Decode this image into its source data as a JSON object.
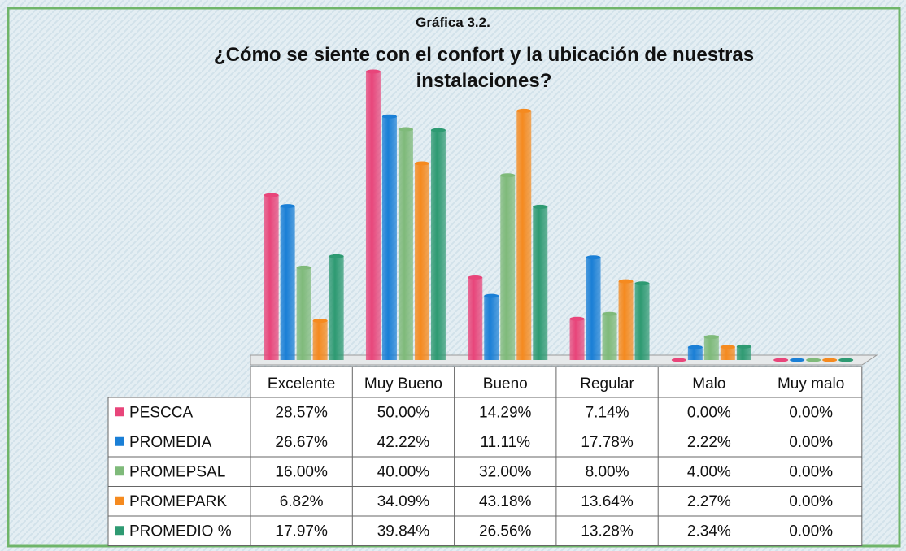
{
  "chart_data": {
    "type": "bar",
    "title": "Gráfica 3.2.",
    "subtitle": "¿Cómo se siente con el confort y la ubicación de nuestras instalaciones?",
    "categories": [
      "Excelente",
      "Muy Bueno",
      "Bueno",
      "Regular",
      "Malo",
      "Muy malo"
    ],
    "series": [
      {
        "name": "PESCCA",
        "color": "#e8457a",
        "values": [
          28.57,
          50.0,
          14.29,
          7.14,
          0.0,
          0.0
        ],
        "value_labels": [
          "28.57%",
          "50.00%",
          "14.29%",
          "7.14%",
          "0.00%",
          "0.00%"
        ]
      },
      {
        "name": "PROMEDIA",
        "color": "#1a7fd6",
        "values": [
          26.67,
          42.22,
          11.11,
          17.78,
          2.22,
          0.0
        ],
        "value_labels": [
          "26.67%",
          "42.22%",
          "11.11%",
          "17.78%",
          "2.22%",
          "0.00%"
        ]
      },
      {
        "name": "PROMEPSAL",
        "color": "#7fba7a",
        "values": [
          16.0,
          40.0,
          32.0,
          8.0,
          4.0,
          0.0
        ],
        "value_labels": [
          "16.00%",
          "40.00%",
          "32.00%",
          "8.00%",
          "4.00%",
          "0.00%"
        ]
      },
      {
        "name": "PROMEPARK",
        "color": "#f58a1f",
        "values": [
          6.82,
          34.09,
          43.18,
          13.64,
          2.27,
          0.0
        ],
        "value_labels": [
          "6.82%",
          "34.09%",
          "43.18%",
          "13.64%",
          "2.27%",
          "0.00%"
        ]
      },
      {
        "name": "PROMEDIO %",
        "color": "#2e9a72",
        "values": [
          17.97,
          39.84,
          26.56,
          13.28,
          2.34,
          0.0
        ],
        "value_labels": [
          "17.97%",
          "39.84%",
          "26.56%",
          "13.28%",
          "2.34%",
          "0.00%"
        ]
      }
    ]
  }
}
